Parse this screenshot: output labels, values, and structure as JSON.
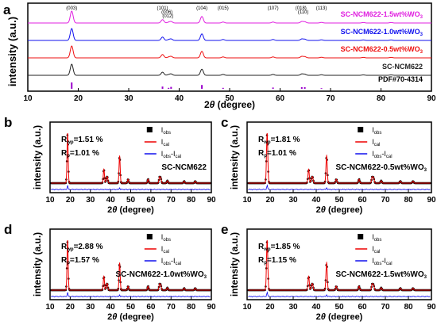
{
  "figure": {
    "panel_labels": [
      "a",
      "b",
      "c",
      "d",
      "e"
    ],
    "xlabel_prefix": "2",
    "xlabel_theta": "θ",
    "xlabel_suffix": " (degree)",
    "ylabel_a": "intensity (a.u.)",
    "ylabel_small": "intensity (a.u.)"
  },
  "chart_data": [
    {
      "panel": "a",
      "type": "line",
      "xlim": [
        10,
        90
      ],
      "xticks": [
        10,
        20,
        30,
        40,
        50,
        60,
        70,
        80,
        90
      ],
      "peak_labels": [
        {
          "text": "(003)",
          "x": 18.7
        },
        {
          "text": "(101)",
          "x": 36.7
        },
        {
          "text": "(006)",
          "x": 37.9
        },
        {
          "text": "(012)",
          "x": 38.4
        },
        {
          "text": "(104)",
          "x": 44.5
        },
        {
          "text": "(015)",
          "x": 48.7
        },
        {
          "text": "(107)",
          "x": 58.6
        },
        {
          "text": "(018)",
          "x": 64.3
        },
        {
          "text": "(110)",
          "x": 64.9
        },
        {
          "text": "(113)",
          "x": 68.2
        }
      ],
      "series": [
        {
          "name": "SC-NCM622-1.5wt%WO",
          "sub": "3",
          "color": "#e020e0"
        },
        {
          "name": "SC-NCM622-1.0wt%WO",
          "sub": "3",
          "color": "#1010ee"
        },
        {
          "name": "SC-NCM622-0.5wt%WO",
          "sub": "3",
          "color": "#ee1010"
        },
        {
          "name": "SC-NCM622",
          "sub": "",
          "color": "#222222"
        },
        {
          "name": "PDF#70-4314",
          "sub": "",
          "color": "#9a00cc"
        }
      ],
      "reference_sticks": [
        {
          "x": 18.7,
          "h": 1.0
        },
        {
          "x": 36.7,
          "h": 0.35
        },
        {
          "x": 37.9,
          "h": 0.15
        },
        {
          "x": 38.4,
          "h": 0.3
        },
        {
          "x": 44.5,
          "h": 0.6
        },
        {
          "x": 48.7,
          "h": 0.15
        },
        {
          "x": 58.6,
          "h": 0.2
        },
        {
          "x": 64.3,
          "h": 0.25
        },
        {
          "x": 64.9,
          "h": 0.25
        },
        {
          "x": 68.2,
          "h": 0.1
        }
      ]
    },
    {
      "panel": "b",
      "type": "scatter",
      "sample": "SC-NCM622",
      "sample_sub": "",
      "rwp": "=1.51 %",
      "rp": "=1.01 %",
      "legend": {
        "obs": "obs",
        "cal": "cal",
        "diff1": "obs",
        "diff2": "cal"
      },
      "xlim": [
        10,
        90
      ],
      "xticks": [
        10,
        20,
        30,
        40,
        50,
        60,
        70,
        80,
        90
      ]
    },
    {
      "panel": "c",
      "type": "scatter",
      "sample": "SC-NCM622-0.5wt%WO",
      "sample_sub": "3",
      "rwp": "=1.81 %",
      "rp": "=1.01 %",
      "legend": {
        "obs": "obs",
        "cal": "cal",
        "diff1": "obs",
        "diff2": "cal"
      },
      "xlim": [
        10,
        90
      ],
      "xticks": [
        10,
        20,
        30,
        40,
        50,
        60,
        70,
        80,
        90
      ]
    },
    {
      "panel": "d",
      "type": "scatter",
      "sample": "SC-NCM622-1.0wt%WO",
      "sample_sub": "3",
      "rwp": "=2.88 %",
      "rp": "=1.57 %",
      "legend": {
        "obs": "obs",
        "cal": "cal",
        "diff1": "obs",
        "diff2": "cal"
      },
      "xlim": [
        10,
        90
      ],
      "xticks": [
        10,
        20,
        30,
        40,
        50,
        60,
        70,
        80,
        90
      ]
    },
    {
      "panel": "e",
      "type": "scatter",
      "sample": "SC-NCM622-1.5wt%WO",
      "sample_sub": "3",
      "rwp": "=1.85 %",
      "rp": "=1.15 %",
      "legend": {
        "obs": "obs",
        "cal": "cal",
        "diff1": "obs",
        "diff2": "cal"
      },
      "xlim": [
        10,
        90
      ],
      "xticks": [
        10,
        20,
        30,
        40,
        50,
        60,
        70,
        80,
        90
      ]
    }
  ],
  "peak_profile": [
    {
      "x": 18.7,
      "h": 1.0
    },
    {
      "x": 36.7,
      "h": 0.28
    },
    {
      "x": 37.9,
      "h": 0.06
    },
    {
      "x": 38.4,
      "h": 0.12
    },
    {
      "x": 44.5,
      "h": 0.55
    },
    {
      "x": 48.7,
      "h": 0.08
    },
    {
      "x": 58.6,
      "h": 0.08
    },
    {
      "x": 64.3,
      "h": 0.12
    },
    {
      "x": 64.9,
      "h": 0.1
    },
    {
      "x": 68.2,
      "h": 0.05
    },
    {
      "x": 76.5,
      "h": 0.04
    },
    {
      "x": 82.0,
      "h": 0.04
    }
  ]
}
